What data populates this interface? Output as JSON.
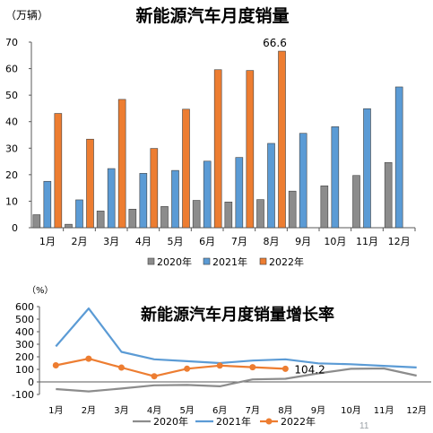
{
  "page": {
    "page_number": "11",
    "colors": {
      "s2020": "#8c8c8c",
      "s2021": "#5b9bd5",
      "s2022": "#ed7d31",
      "axis": "#595959",
      "text": "#000000"
    }
  },
  "chart_data": [
    {
      "type": "bar",
      "title": "新能源汽车月度销量",
      "ylabel": "（万辆）",
      "xlabel": "",
      "ylim": [
        0,
        70
      ],
      "yticks": [
        "0",
        "10",
        "20",
        "30",
        "40",
        "50",
        "60",
        "70"
      ],
      "categories": [
        "1月",
        "2月",
        "3月",
        "4月",
        "5月",
        "6月",
        "7月",
        "8月",
        "9月",
        "10月",
        "11月",
        "12月"
      ],
      "series": [
        {
          "name": "2020年",
          "color": "#8c8c8c",
          "values": [
            4.9,
            1.3,
            6.3,
            7.0,
            8.0,
            10.3,
            9.7,
            10.6,
            13.8,
            15.8,
            19.7,
            24.6
          ]
        },
        {
          "name": "2021年",
          "color": "#5b9bd5",
          "values": [
            17.5,
            10.5,
            22.3,
            20.5,
            21.6,
            25.1,
            26.5,
            31.8,
            35.6,
            38.1,
            44.9,
            53.1
          ]
        },
        {
          "name": "2022年",
          "color": "#ed7d31",
          "values": [
            43.1,
            33.4,
            48.4,
            29.9,
            44.7,
            59.6,
            59.3,
            66.6,
            null,
            null,
            null,
            null
          ]
        }
      ],
      "annotations": [
        {
          "series": "2022年",
          "category": "8月",
          "text": "66.6"
        }
      ],
      "legend": "bottom",
      "grid": false
    },
    {
      "type": "line",
      "title": "新能源汽车月度销量增长率",
      "ylabel": "（%）",
      "xlabel": "",
      "ylim": [
        -100,
        600
      ],
      "yticks": [
        "-100",
        "0",
        "100",
        "200",
        "300",
        "400",
        "500",
        "600"
      ],
      "categories": [
        "1月",
        "2月",
        "3月",
        "4月",
        "5月",
        "6月",
        "7月",
        "8月",
        "9月",
        "10月",
        "11月",
        "12月"
      ],
      "series": [
        {
          "name": "2020年",
          "color": "#8c8c8c",
          "marker": false,
          "values": [
            -57,
            -76,
            -53,
            -27,
            -24,
            -35,
            20,
            25,
            68,
            104,
            107,
            50
          ]
        },
        {
          "name": "2021年",
          "color": "#5b9bd5",
          "marker": false,
          "values": [
            283,
            585,
            239,
            180,
            165,
            150,
            170,
            180,
            148,
            141,
            128,
            115
          ]
        },
        {
          "name": "2022年",
          "color": "#ed7d31",
          "marker": true,
          "values": [
            132,
            185,
            114,
            45,
            105,
            130,
            117,
            104.2,
            null,
            null,
            null,
            null
          ]
        }
      ],
      "annotations": [
        {
          "series": "2022年",
          "category": "8月",
          "text": "104.2"
        }
      ],
      "legend": "bottom",
      "grid": false
    }
  ]
}
